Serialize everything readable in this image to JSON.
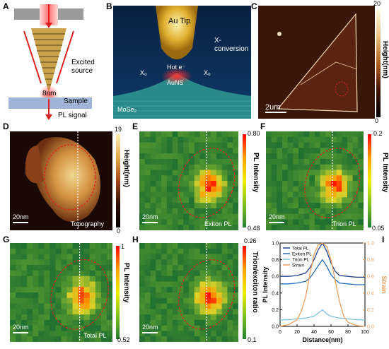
{
  "panels": {
    "A": {
      "letter": "A",
      "label_excited": "Excited\nsource",
      "label_8nm": "8nm",
      "label_sample": "Sample",
      "label_pl": "PL signal"
    },
    "B": {
      "letter": "B",
      "tip": "Au Tip",
      "xconv": "X-\nconversion",
      "x0_left": "X₀",
      "x0_right": "X₀",
      "hot": "Hot e⁻",
      "auns": "AuNS",
      "mose2": "MoSe₂"
    },
    "C": {
      "letter": "C",
      "scale": "2um",
      "cb_top": "20",
      "cb_bottom": "0",
      "cb_title": "Height(nm)"
    },
    "D": {
      "letter": "D",
      "scale": "20nm",
      "caption": "Topography",
      "cb_top": "19",
      "cb_bottom": "0",
      "cb_title": "Height(nm)"
    },
    "E": {
      "letter": "E",
      "scale": "20nm",
      "caption": "Exiton PL",
      "cb_top": "0.80",
      "cb_bottom": "0.48",
      "cb_title": "PL Intensity"
    },
    "F": {
      "letter": "F",
      "scale": "20nm",
      "caption": "Trion PL",
      "cb_top": "0.2",
      "cb_bottom": "0.05",
      "cb_title": "PL Intensity"
    },
    "G": {
      "letter": "G",
      "scale": "20nm",
      "caption": "Total PL",
      "cb_top": "1",
      "cb_bottom": "0.52",
      "cb_title": "PL Intensity"
    },
    "H": {
      "letter": "H",
      "scale": "20nm",
      "cb_top": "0.26",
      "cb_bottom": "0.1",
      "cb_title": "Trion/exciton ratio"
    },
    "I": {
      "letter": "I"
    }
  },
  "chart_data": {
    "type": "line",
    "xlabel": "Distance(nm)",
    "ylabel": "PL Intensity",
    "y2label": "Strain",
    "xlim": [
      0,
      100
    ],
    "ylim": [
      0,
      1.0
    ],
    "y2lim": [
      0,
      1.0
    ],
    "xticks": [
      "0",
      "20",
      "40",
      "60",
      "80",
      "100"
    ],
    "yticks": [
      "0.0",
      "0.2",
      "0.4",
      "0.6",
      "0.8",
      "1.0"
    ],
    "y2ticks": [
      "0.0",
      "0.2",
      "0.4",
      "0.6",
      "0.8",
      "1.0"
    ],
    "legend_position": "top-left",
    "series": [
      {
        "name": "Total PL",
        "color": "#1f3f8f",
        "x": [
          0,
          10,
          20,
          30,
          35,
          40,
          45,
          50,
          55,
          60,
          65,
          70,
          80,
          90,
          100
        ],
        "y": [
          0.6,
          0.6,
          0.61,
          0.64,
          0.7,
          0.8,
          0.92,
          1.0,
          0.9,
          0.76,
          0.66,
          0.61,
          0.6,
          0.59,
          0.59
        ]
      },
      {
        "name": "Exiton PL",
        "color": "#2a6fb5",
        "x": [
          0,
          10,
          20,
          30,
          35,
          40,
          45,
          50,
          55,
          60,
          65,
          70,
          80,
          90,
          100
        ],
        "y": [
          0.51,
          0.51,
          0.52,
          0.54,
          0.58,
          0.65,
          0.73,
          0.8,
          0.72,
          0.62,
          0.56,
          0.52,
          0.51,
          0.5,
          0.5
        ]
      },
      {
        "name": "Trion PL",
        "color": "#7fc4e0",
        "x": [
          0,
          10,
          20,
          30,
          40,
          45,
          50,
          55,
          60,
          70,
          80,
          90,
          100
        ],
        "y": [
          0.08,
          0.08,
          0.09,
          0.1,
          0.12,
          0.16,
          0.2,
          0.15,
          0.12,
          0.1,
          0.09,
          0.08,
          0.08
        ]
      },
      {
        "name": "Strain",
        "color": "#f0a060",
        "axis": "y2",
        "x": [
          0,
          10,
          20,
          25,
          30,
          35,
          40,
          45,
          50,
          55,
          60,
          65,
          70,
          75,
          80,
          90,
          100
        ],
        "y": [
          0.0,
          0.02,
          0.08,
          0.18,
          0.35,
          0.62,
          0.86,
          0.98,
          1.0,
          0.96,
          0.8,
          0.55,
          0.3,
          0.12,
          0.05,
          0.01,
          0.0
        ]
      }
    ]
  }
}
